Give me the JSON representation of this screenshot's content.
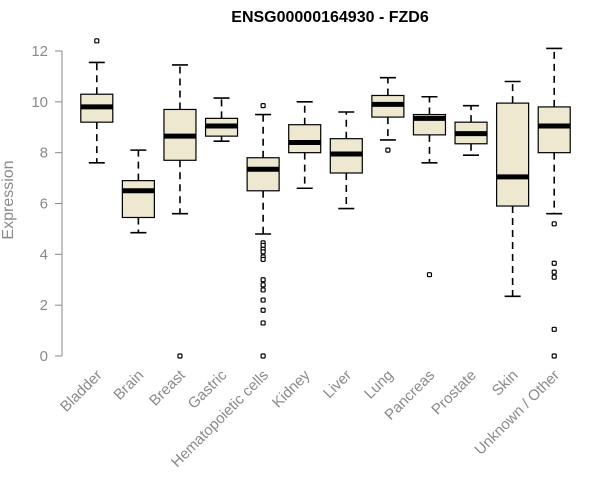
{
  "chart_data": {
    "type": "boxplot",
    "title": "ENSG00000164930 - FZD6",
    "xlabel": "",
    "ylabel": "Expression",
    "ylim": [
      0,
      12
    ],
    "yticks": [
      0,
      2,
      4,
      6,
      8,
      10,
      12
    ],
    "grid": false,
    "categories": [
      "Bladder",
      "Brain",
      "Breast",
      "Gastric",
      "Hematopoietic cells",
      "Kidney",
      "Liver",
      "Lung",
      "Pancreas",
      "Prostate",
      "Skin",
      "Unknown / Other"
    ],
    "boxes": [
      {
        "category": "Bladder",
        "whisker_low": 7.6,
        "q1": 9.2,
        "median": 9.8,
        "q3": 10.3,
        "whisker_high": 11.55,
        "outliers": [
          12.4
        ]
      },
      {
        "category": "Brain",
        "whisker_low": 4.85,
        "q1": 5.45,
        "median": 6.5,
        "q3": 6.9,
        "whisker_high": 8.1,
        "outliers": []
      },
      {
        "category": "Breast",
        "whisker_low": 5.6,
        "q1": 7.7,
        "median": 8.65,
        "q3": 9.7,
        "whisker_high": 11.45,
        "outliers": [
          0.0
        ]
      },
      {
        "category": "Gastric",
        "whisker_low": 8.45,
        "q1": 8.65,
        "median": 9.05,
        "q3": 9.35,
        "whisker_high": 10.15,
        "outliers": []
      },
      {
        "category": "Hematopoietic cells",
        "whisker_low": 4.8,
        "q1": 6.5,
        "median": 7.35,
        "q3": 7.8,
        "whisker_high": 9.5,
        "outliers": [
          9.85,
          4.45,
          4.35,
          4.2,
          4.1,
          3.9,
          3.8,
          3.0,
          2.8,
          2.6,
          2.2,
          1.8,
          1.3,
          0.0
        ]
      },
      {
        "category": "Kidney",
        "whisker_low": 6.6,
        "q1": 8.0,
        "median": 8.4,
        "q3": 9.1,
        "whisker_high": 10.0,
        "outliers": []
      },
      {
        "category": "Liver",
        "whisker_low": 5.8,
        "q1": 7.2,
        "median": 7.95,
        "q3": 8.55,
        "whisker_high": 9.6,
        "outliers": []
      },
      {
        "category": "Lung",
        "whisker_low": 8.5,
        "q1": 9.4,
        "median": 9.9,
        "q3": 10.25,
        "whisker_high": 10.95,
        "outliers": [
          8.1
        ]
      },
      {
        "category": "Pancreas",
        "whisker_low": 7.6,
        "q1": 8.7,
        "median": 9.35,
        "q3": 9.5,
        "whisker_high": 10.2,
        "outliers": [
          3.2
        ]
      },
      {
        "category": "Prostate",
        "whisker_low": 7.9,
        "q1": 8.35,
        "median": 8.75,
        "q3": 9.2,
        "whisker_high": 9.85,
        "outliers": []
      },
      {
        "category": "Skin",
        "whisker_low": 2.35,
        "q1": 5.9,
        "median": 7.05,
        "q3": 9.95,
        "whisker_high": 10.8,
        "outliers": []
      },
      {
        "category": "Unknown / Other",
        "whisker_low": 5.6,
        "q1": 8.0,
        "median": 9.05,
        "q3": 9.8,
        "whisker_high": 12.1,
        "outliers": [
          5.2,
          3.65,
          3.3,
          3.1,
          1.05,
          0.0
        ]
      }
    ]
  }
}
